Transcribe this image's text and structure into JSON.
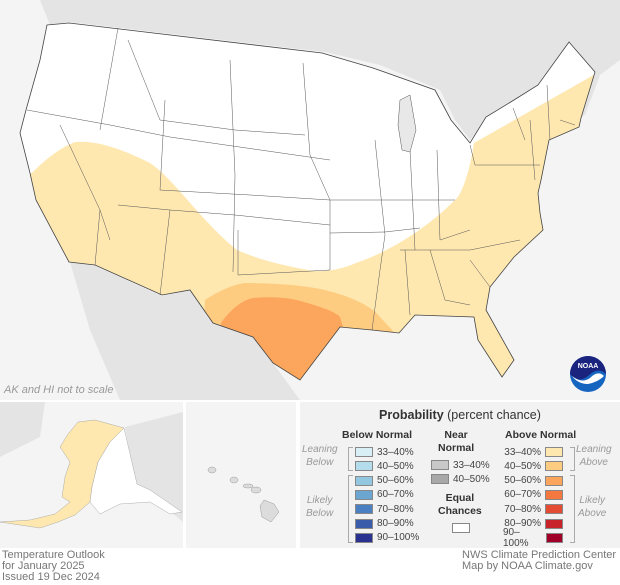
{
  "map": {
    "inset_note": "AK and HI not to scale",
    "logo_text": "NOAA",
    "colors": {
      "land_outside": "#e4e4e4",
      "water": "#f4f4f4",
      "equal_chances": "#ffffff",
      "above_33_40": "#fee8b0",
      "above_40_50": "#fecc80",
      "above_50_60": "#fca55c"
    }
  },
  "legend": {
    "title": "Probability",
    "title_suffix": "(percent chance)",
    "below": {
      "header": "Below Normal",
      "leaning_label": [
        "Leaning",
        "Below"
      ],
      "likely_label": [
        "Likely",
        "Below"
      ],
      "items": [
        {
          "label": "33–40%",
          "color": "#d9eff6"
        },
        {
          "label": "40–50%",
          "color": "#b3dcec"
        },
        {
          "label": "50–60%",
          "color": "#93c7e0"
        },
        {
          "label": "60–70%",
          "color": "#6aa6cf"
        },
        {
          "label": "70–80%",
          "color": "#4a80c1"
        },
        {
          "label": "80–90%",
          "color": "#3a5aaa"
        },
        {
          "label": "90–100%",
          "color": "#2a3290"
        }
      ]
    },
    "near": {
      "header": [
        "Near",
        "Normal"
      ],
      "items": [
        {
          "label": "33–40%",
          "color": "#c8c8c8"
        },
        {
          "label": "40–50%",
          "color": "#a8a8a8"
        }
      ]
    },
    "equal": {
      "label": [
        "Equal",
        "Chances"
      ],
      "color": "#ffffff"
    },
    "above": {
      "header": "Above Normal",
      "leaning_label": [
        "Leaning",
        "Above"
      ],
      "likely_label": [
        "Likely",
        "Above"
      ],
      "items": [
        {
          "label": "33–40%",
          "color": "#fee8b0"
        },
        {
          "label": "40–50%",
          "color": "#fecc80"
        },
        {
          "label": "50–60%",
          "color": "#fca55c"
        },
        {
          "label": "60–70%",
          "color": "#f4783f"
        },
        {
          "label": "70–80%",
          "color": "#e34c33"
        },
        {
          "label": "80–90%",
          "color": "#c8232a"
        },
        {
          "label": "90–100%",
          "color": "#a00028"
        }
      ]
    }
  },
  "footer": {
    "left": [
      "Temperature Outlook",
      "for January 2025",
      "Issued 19 Dec 2024"
    ],
    "right": [
      "NWS Climate Prediction Center",
      "Map by NOAA Climate.gov"
    ]
  }
}
